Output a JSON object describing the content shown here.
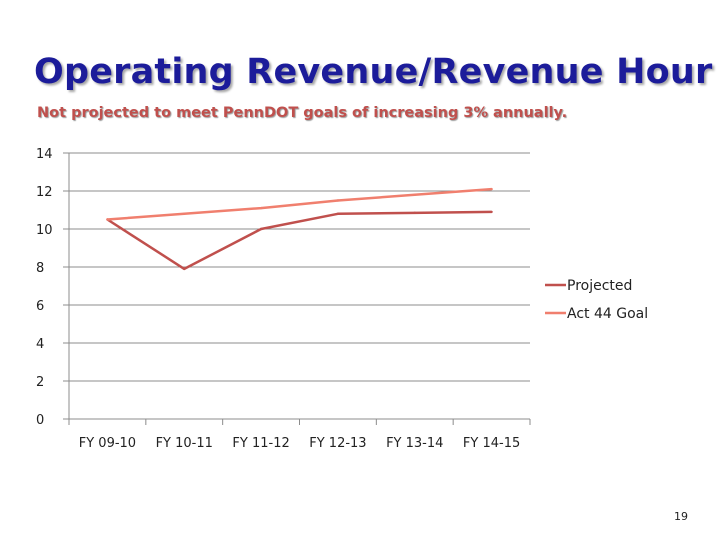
{
  "slide": {
    "title": "Operating Revenue/Revenue Hour",
    "subtitle": "Not projected to meet PennDOT goals of increasing 3% annually.",
    "page_number": "19"
  },
  "chart_data": {
    "type": "line",
    "categories": [
      "FY 09-10",
      "FY 10-11",
      "FY 11-12",
      "FY 12-13",
      "FY 13-14",
      "FY 14-15"
    ],
    "series": [
      {
        "name": "Projected",
        "color": "#c0504d",
        "values": [
          10.5,
          7.9,
          10.0,
          10.8,
          10.85,
          10.9
        ]
      },
      {
        "name": "Act 44 Goal",
        "color": "#f07f6e",
        "values": [
          10.5,
          10.8,
          11.1,
          11.5,
          11.8,
          12.1
        ]
      }
    ],
    "ylim": [
      0,
      14
    ],
    "yticks": [
      "0",
      "2",
      "4",
      "6",
      "8",
      "10",
      "12",
      "14"
    ],
    "grid": true,
    "legend": "right"
  }
}
